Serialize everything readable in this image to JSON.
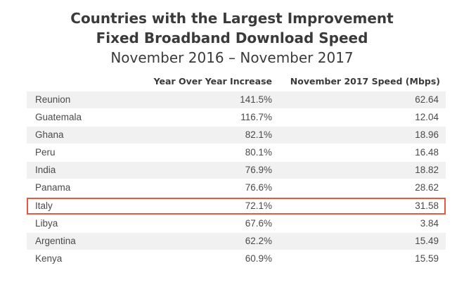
{
  "title": {
    "line1": "Countries with the Largest Improvement",
    "line2": "Fixed Broadband Download Speed",
    "line3": "November 2016 – November 2017"
  },
  "columns": {
    "yoy": "Year Over Year Increase",
    "speed": "November 2017 Speed (Mbps)"
  },
  "rows": [
    {
      "country": "Reunion",
      "yoy": "141.5%",
      "speed": "62.64"
    },
    {
      "country": "Guatemala",
      "yoy": "116.7%",
      "speed": "12.04"
    },
    {
      "country": "Ghana",
      "yoy": "82.1%",
      "speed": "18.96"
    },
    {
      "country": "Peru",
      "yoy": "80.1%",
      "speed": "16.48"
    },
    {
      "country": "India",
      "yoy": "76.9%",
      "speed": "18.82"
    },
    {
      "country": "Panama",
      "yoy": "76.6%",
      "speed": "28.62"
    },
    {
      "country": "Italy",
      "yoy": "72.1%",
      "speed": "31.58"
    },
    {
      "country": "Libya",
      "yoy": "67.6%",
      "speed": "3.84"
    },
    {
      "country": "Argentina",
      "yoy": "62.2%",
      "speed": "15.49"
    },
    {
      "country": "Kenya",
      "yoy": "60.9%",
      "speed": "15.59"
    }
  ],
  "highlighted_country": "Italy",
  "colors": {
    "highlight_border": "#e9573f",
    "row_shade": "#f1f1f1",
    "text": "#3a3a3a"
  }
}
